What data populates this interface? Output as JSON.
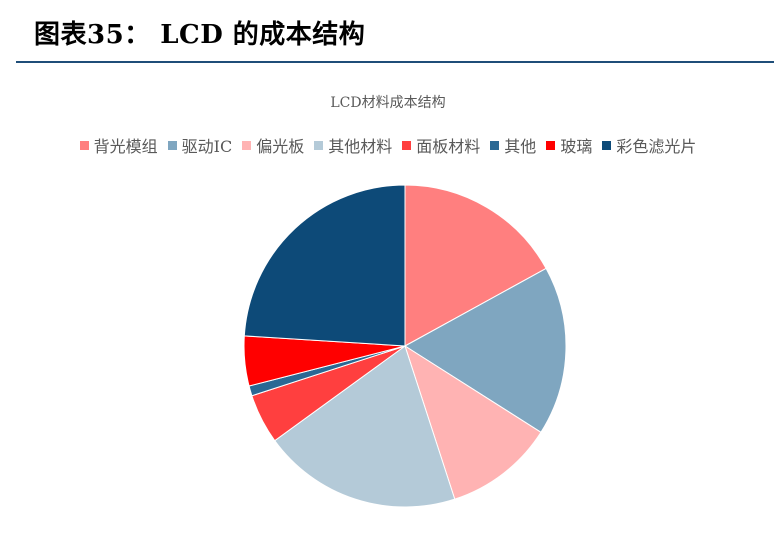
{
  "figure": {
    "title": "图表35：  LCD 的成本结构"
  },
  "chart_data": {
    "type": "pie",
    "title": "LCD材料成本结构",
    "legend_position": "top",
    "categories": [
      "背光模组",
      "驱动IC",
      "偏光板",
      "其他材料",
      "面板材料",
      "其他",
      "玻璃",
      "彩色滤光片"
    ],
    "values": [
      17,
      17,
      11,
      20,
      5,
      1,
      5,
      24
    ],
    "colors": [
      "#ff7f7f",
      "#7fa6c0",
      "#ffb3b3",
      "#b4cad8",
      "#ff3f3f",
      "#2a6894",
      "#ff0000",
      "#0d4a78"
    ]
  }
}
